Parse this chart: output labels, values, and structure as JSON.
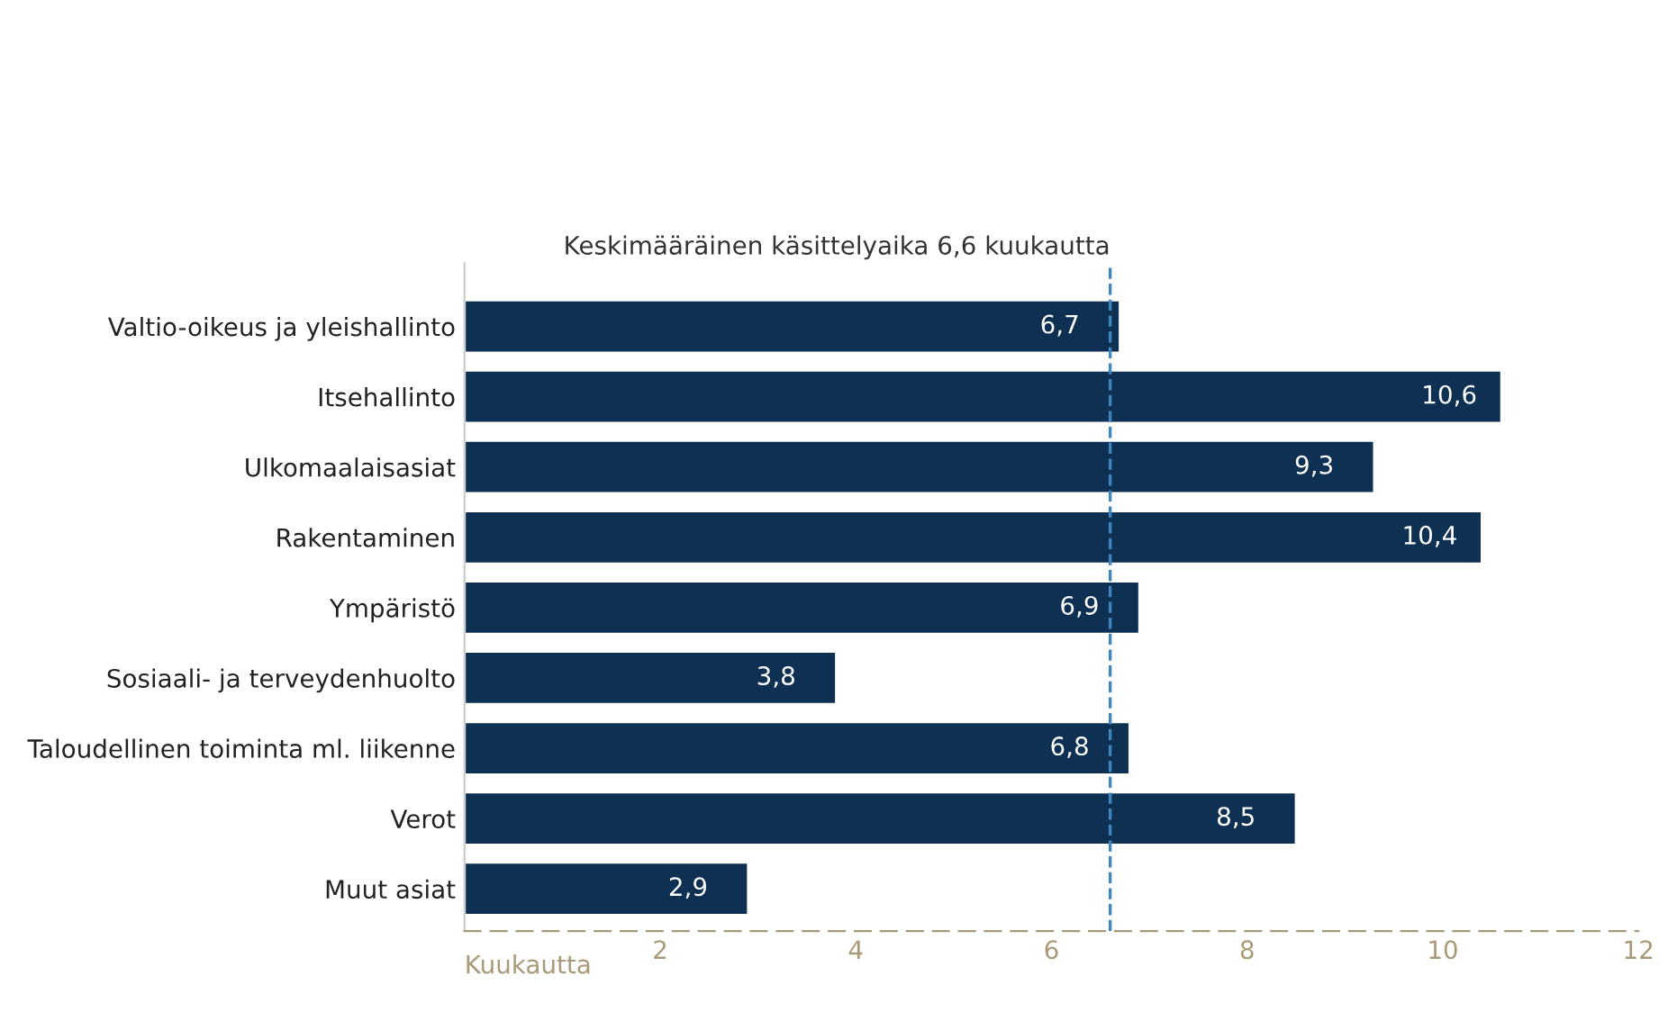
{
  "chart_data": {
    "type": "bar",
    "orientation": "horizontal",
    "categories": [
      "Valtio-oikeus ja yleishallinto",
      "Itsehallinto",
      "Ulkomaalaisasiat",
      "Rakentaminen",
      "Ympäristö",
      "Sosiaali- ja terveydenhuolto",
      "Taloudellinen toiminta ml. liikenne",
      "Verot",
      "Muut asiat"
    ],
    "values": [
      6.7,
      10.6,
      9.3,
      10.4,
      6.9,
      3.8,
      6.8,
      8.5,
      2.9
    ],
    "value_labels": [
      "6,7",
      "10,6",
      "9,3",
      "10,4",
      "6,9",
      "3,8",
      "6,8",
      "8,5",
      "2,9"
    ],
    "color": "#0e3153",
    "xlabel": "Kuukautta",
    "xlim": [
      0,
      12
    ],
    "xticks": [
      2,
      4,
      6,
      8,
      10,
      12
    ],
    "ref_lines": [
      {
        "axis": "x",
        "value": 6.6,
        "label": "Keskimääräinen käsittelyaika 6,6 kuukautta",
        "color": "#3d86bf",
        "line_style": "dashed"
      }
    ],
    "grid": false
  }
}
